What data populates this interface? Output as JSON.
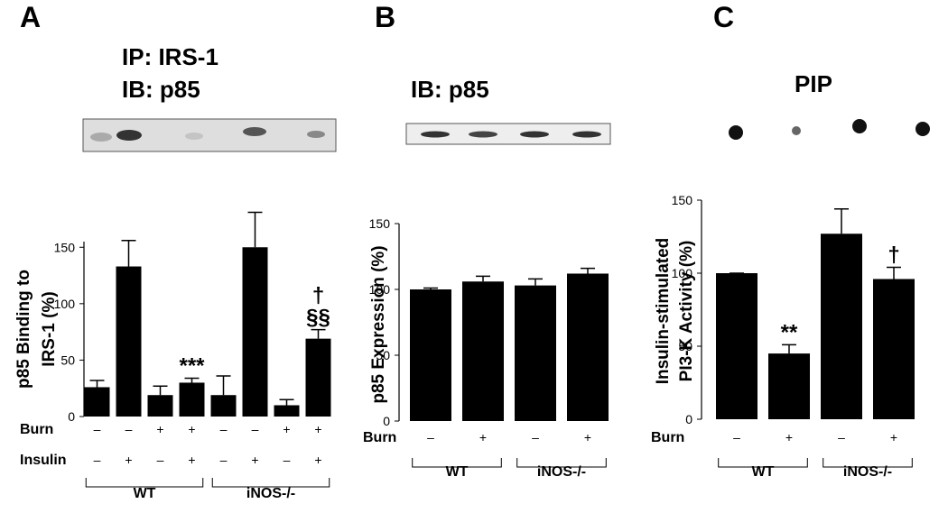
{
  "chart_data": [
    {
      "type": "bar",
      "panel": "A",
      "blot_labels": [
        "IP: IRS-1",
        "IB: p85"
      ],
      "ylabel": [
        "p85 Binding to",
        "IRS-1 (%)"
      ],
      "color": "#000000",
      "values": [
        26,
        133,
        19,
        30,
        19,
        150,
        10,
        69
      ],
      "errors": [
        6,
        23,
        8,
        4,
        17,
        31,
        5,
        8
      ],
      "annotations": [
        null,
        null,
        null,
        [
          "***"
        ],
        null,
        null,
        null,
        [
          "†",
          "§§"
        ]
      ],
      "ylim": [
        0,
        155
      ],
      "yticks": [
        0,
        50,
        100,
        150
      ],
      "rows": [
        {
          "label": "Burn",
          "signs": [
            "–",
            "–",
            "+",
            "+",
            "–",
            "–",
            "+",
            "+"
          ]
        },
        {
          "label": "Insulin",
          "signs": [
            "–",
            "+",
            "–",
            "+",
            "–",
            "+",
            "–",
            "+"
          ]
        }
      ],
      "groups": [
        "WT",
        "iNOS-/-"
      ]
    },
    {
      "type": "bar",
      "panel": "B",
      "blot_labels": [
        "IB: p85"
      ],
      "ylabel": [
        "p85 Expression (%)"
      ],
      "color": "#000000",
      "values": [
        100,
        106,
        103,
        112
      ],
      "errors": [
        1,
        4,
        5,
        4
      ],
      "ylim": [
        0,
        150
      ],
      "yticks": [
        0,
        50,
        100,
        150
      ],
      "rows": [
        {
          "label": "Burn",
          "signs": [
            "–",
            "+",
            "–",
            "+"
          ]
        }
      ],
      "groups": [
        "WT",
        "iNOS-/-"
      ]
    },
    {
      "type": "bar",
      "panel": "C",
      "blot_labels": [
        "PIP"
      ],
      "ylabel": [
        "Insulin-stimulated",
        "PI3-K Activity (%)"
      ],
      "color": "#000000",
      "values": [
        100,
        45,
        127,
        96
      ],
      "errors": [
        0,
        6,
        17,
        8
      ],
      "annotations": [
        null,
        [
          "**"
        ],
        null,
        [
          "†"
        ]
      ],
      "ylim": [
        0,
        150
      ],
      "yticks": [
        0,
        50,
        100,
        150
      ],
      "rows": [
        {
          "label": "Burn",
          "signs": [
            "–",
            "+",
            "–",
            "+"
          ]
        }
      ],
      "groups": [
        "WT",
        "iNOS-/-"
      ]
    }
  ]
}
